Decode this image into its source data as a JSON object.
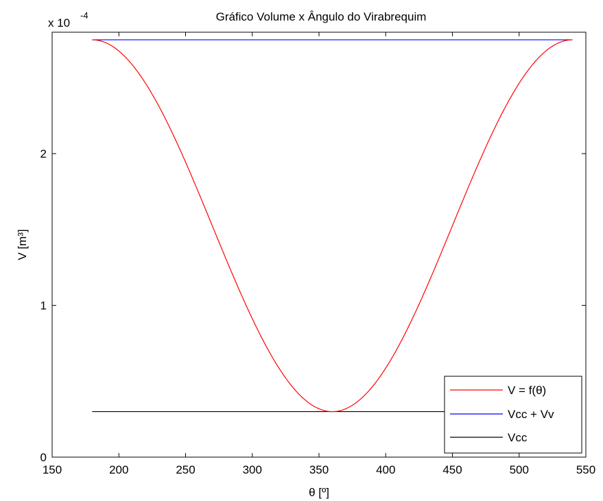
{
  "chart_data": {
    "type": "line",
    "title": "Gráfico Volume x Ângulo do Virabrequim",
    "xlabel": "θ [º]",
    "ylabel": "V [m³]",
    "y_multiplier_base": "x 10",
    "y_multiplier_exp": "-4",
    "xlim": [
      150,
      550
    ],
    "ylim": [
      0,
      2.8
    ],
    "y_scale": 0.0001,
    "x_ticks": [
      150,
      200,
      250,
      300,
      350,
      400,
      450,
      500,
      550
    ],
    "y_ticks": [
      0,
      1,
      2
    ],
    "grid": false,
    "legend_position": "bottom-right",
    "legend": [
      "V = f(θ)",
      "Vcc + Vv",
      "Vcc"
    ],
    "series": [
      {
        "name": "V = f(θ)",
        "color": "#ff0000",
        "curve": "cosine",
        "x_range": [
          180,
          540
        ],
        "min_at": 360,
        "v_min": 0.3,
        "v_max": 2.75
      },
      {
        "name": "Vcc + Vv",
        "color": "#0000ff",
        "x": [
          180,
          540
        ],
        "y": [
          2.75,
          2.75
        ]
      },
      {
        "name": "Vcc",
        "color": "#000000",
        "x": [
          180,
          540
        ],
        "y": [
          0.3,
          0.3
        ]
      }
    ]
  }
}
